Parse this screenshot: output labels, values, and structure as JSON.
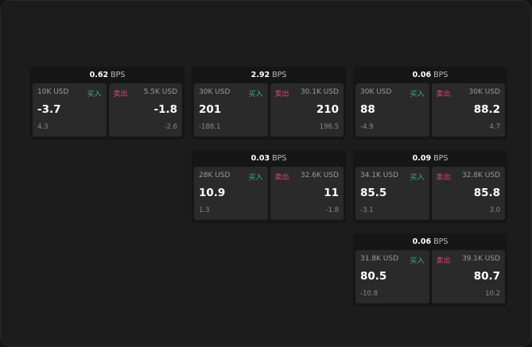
{
  "labels": {
    "buy": "买入",
    "sell": "卖出",
    "unit": "BPS"
  },
  "colors": {
    "buy": "#3bb36b",
    "sell": "#e0456f",
    "background": "#1c1c1c",
    "tile": "#2a2a2a"
  },
  "cards": [
    {
      "spread": "0.62",
      "buy": {
        "size": "10K USD",
        "price": "-3.7",
        "change": "4.3"
      },
      "sell": {
        "size": "5.5K USD",
        "price": "-1.8",
        "change": "-2.6"
      }
    },
    {
      "spread": "2.92",
      "buy": {
        "size": "30K USD",
        "price": "201",
        "change": "-188.1"
      },
      "sell": {
        "size": "30.1K USD",
        "price": "210",
        "change": "196.5"
      }
    },
    {
      "spread": "0.06",
      "buy": {
        "size": "30K USD",
        "price": "88",
        "change": "-4.9"
      },
      "sell": {
        "size": "30K USD",
        "price": "88.2",
        "change": "4.7"
      }
    },
    {
      "spread": "0.03",
      "buy": {
        "size": "28K USD",
        "price": "10.9",
        "change": "1.3"
      },
      "sell": {
        "size": "32.6K USD",
        "price": "11",
        "change": "-1.8"
      }
    },
    {
      "spread": "0.09",
      "buy": {
        "size": "34.1K USD",
        "price": "85.5",
        "change": "-3.1"
      },
      "sell": {
        "size": "32.8K USD",
        "price": "85.8",
        "change": "3.0"
      }
    },
    {
      "spread": "0.06",
      "buy": {
        "size": "31.8K USD",
        "price": "80.5",
        "change": "-10.8"
      },
      "sell": {
        "size": "39.1K USD",
        "price": "80.7",
        "change": "10.2"
      }
    }
  ]
}
